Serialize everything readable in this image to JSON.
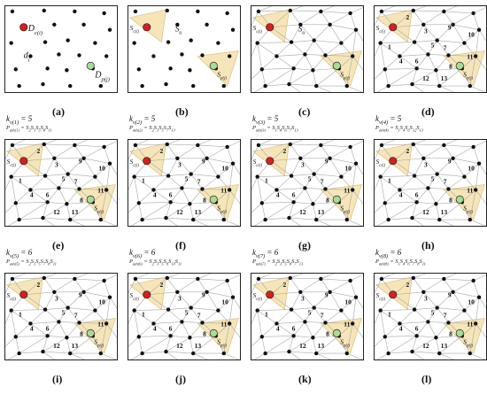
{
  "colors": {
    "origin_node": "#d42020",
    "dest_node": "#a8dc96",
    "region_fill": "#f6e5b8",
    "region_stroke": "#d8b872",
    "edge": "#a8a8a8",
    "dot": "#111111",
    "frame": "#222222"
  },
  "labels": {
    "origin": "S_c(i)",
    "dest": "S_p(j)",
    "dc": "D_c(i)",
    "dp": "D_p(j)",
    "d": "d_(i)",
    "su": "S_(u)",
    "region_numbers": [
      "1",
      "2",
      "3",
      "4",
      "5",
      "6",
      "7",
      "8",
      "9",
      "10",
      "11",
      "12",
      "13"
    ]
  },
  "panels": [
    {
      "letter": "(a)",
      "k_label": "",
      "path_label": "",
      "mode": "a"
    },
    {
      "letter": "(b)",
      "k_label": "",
      "path_label": "",
      "mode": "b"
    },
    {
      "letter": "(c)",
      "k_label": "",
      "path_label": "",
      "mode": "c"
    },
    {
      "letter": "(d)",
      "k_label": "",
      "path_label": "",
      "mode": "d"
    },
    {
      "letter": "(e)",
      "k_label": "k_(v(1)) = 5",
      "path_label": "P_(ath(1)) = S_(2)S_(3)S_(5)S_(8)S_(11)",
      "mode": "full"
    },
    {
      "letter": "(f)",
      "k_label": "k_(v(2)) = 5",
      "path_label": "P_(ath(2)) = S_(2)S_(3)S_(5)S_(7)S_(13)",
      "mode": "full"
    },
    {
      "letter": "(g)",
      "k_label": "k_(v(3)) = 5",
      "path_label": "P_(ath(3)) = S_(1)S_(4)S_(6)S_(7)S_(13)",
      "mode": "full"
    },
    {
      "letter": "(h)",
      "k_label": "k_(v(4)) = 5",
      "path_label": "P_(ath(4)) = S_(1)S_(4)S_(6)S_(12)S_(13)",
      "mode": "full"
    },
    {
      "letter": "(i)",
      "k_label": "k_(v(5)) = 6",
      "path_label": "P_(ath(5)) = S_(2)S_(3)S_(5)S_(7)S_(8)S_(11)",
      "mode": "full"
    },
    {
      "letter": "(j)",
      "k_label": "k_(v(6)) = 6",
      "path_label": "P_(ath(6)) = S_(2)S_(3)S_(5)S_(9)S_(10)S_(11)",
      "mode": "full"
    },
    {
      "letter": "(k)",
      "k_label": "k_(v(7)) = 6",
      "path_label": "P_(ath(7)) = S_(2)S_(3)S_(5)S_(8)S_(7)S_(13)",
      "mode": "full"
    },
    {
      "letter": "(l)",
      "k_label": "k_(v(8)) = 6",
      "path_label": "P_(ath(8)) = S_(1)S_(4)S_(6)S_(7)S_(8)S_(11)",
      "mode": "full"
    }
  ]
}
